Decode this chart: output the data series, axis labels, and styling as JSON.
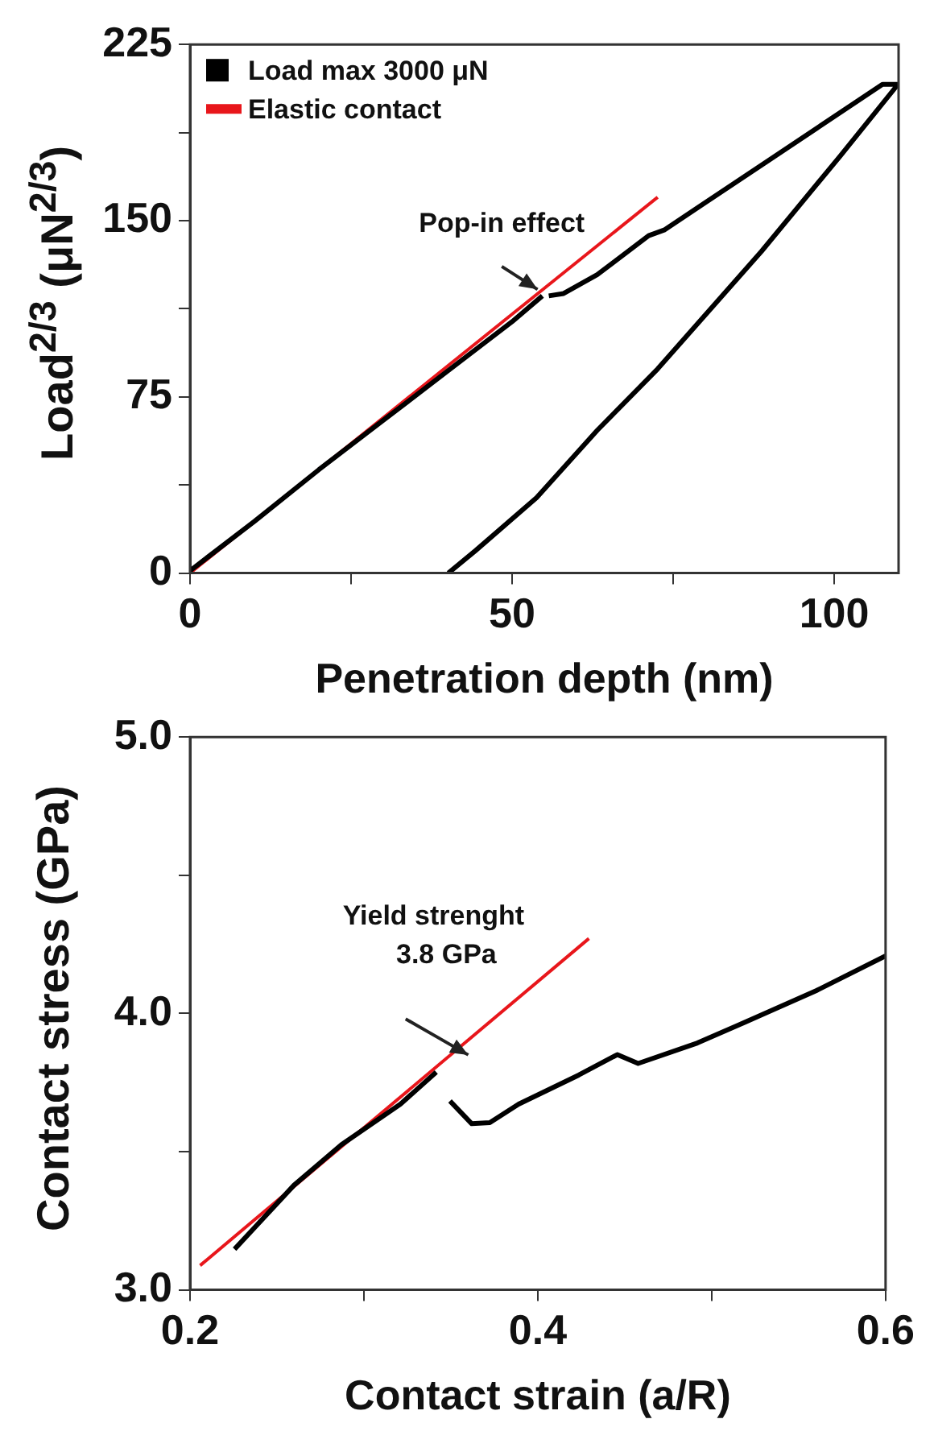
{
  "chart_data": [
    {
      "type": "line",
      "xlabel": "Penetration depth (nm)",
      "ylabel": "Load$^{2/3}$ (μN$^{2/3}$)",
      "xlim": [
        0,
        110
      ],
      "ylim": [
        0,
        225
      ],
      "xticks": [
        0,
        {
          "value": 25,
          "label": null
        },
        50,
        {
          "value": 75,
          "label": null
        },
        100
      ],
      "yticks": [
        0,
        {
          "value": 37.5,
          "label": null
        },
        75,
        {
          "value": 112.5,
          "label": null
        },
        150,
        {
          "value": 187.5,
          "label": null
        },
        225
      ],
      "grid": false,
      "legend": "top left",
      "marker": "none",
      "line_style": "solid",
      "annotations": [
        {
          "text": "Pop-in effect",
          "x": 54.7,
          "y": 118
        }
      ],
      "series": [
        {
          "name": "Load max 3000 μN",
          "color": "#000000",
          "x": [
            0,
            10,
            20,
            30,
            40,
            50,
            54.7,
            null,
            55.7,
            58,
            63.2,
            71.2,
            73.6,
            90,
            107.5,
            109.9,
            100.9,
            88.7,
            72.6,
            63.2,
            53.8,
            44.3,
            40.1
          ],
          "values": [
            1,
            22,
            44,
            65,
            86,
            107,
            118,
            null,
            118,
            119,
            127,
            143.6,
            146,
            176,
            208,
            208,
            177.4,
            136.9,
            86.9,
            60.7,
            32.1,
            9.5,
            0
          ]
        },
        {
          "name": "Elastic contact",
          "color": "#e8161b",
          "x": [
            0,
            72.6
          ],
          "values": [
            0,
            160
          ]
        }
      ]
    },
    {
      "type": "line",
      "xlabel": "Contact strain (a/R)",
      "ylabel": "Contact stress (GPa)",
      "xlim": [
        0.2,
        0.6
      ],
      "ylim": [
        3.0,
        5.0
      ],
      "xticks": [
        {
          "value": 0.2,
          "label": "0.2"
        },
        {
          "value": 0.3,
          "label": null
        },
        {
          "value": 0.4,
          "label": "0.4"
        },
        {
          "value": 0.5,
          "label": null
        },
        {
          "value": 0.6,
          "label": "0.6"
        }
      ],
      "yticks": [
        {
          "value": 3,
          "label": "3.0"
        },
        {
          "value": 3.5,
          "label": null
        },
        {
          "value": 4,
          "label": "4.0"
        },
        {
          "value": 4.5,
          "label": null
        },
        {
          "value": 5,
          "label": "5.0"
        }
      ],
      "grid": false,
      "legend": false,
      "marker": "none",
      "line_style": "solid",
      "annotations": [
        "Yield strenght\n3.8 GPa"
      ],
      "series": [
        {
          "color": "#000000",
          "x": [
            0.2256,
            0.2597,
            0.287,
            0.321,
            0.3416,
            null,
            0.3495,
            0.362,
            0.3724,
            0.389,
            0.4235,
            0.4457,
            0.4577,
            0.4918,
            0.526,
            0.56,
            0.6
          ],
          "values": [
            3.147,
            3.378,
            3.525,
            3.672,
            3.788,
            null,
            3.683,
            3.601,
            3.605,
            3.672,
            3.777,
            3.851,
            3.819,
            3.893,
            3.987,
            4.082,
            4.208
          ]
        },
        {
          "color": "#e8161b",
          "x": [
            0.2058,
            0.4294
          ],
          "values": [
            3.088,
            4.271
          ]
        }
      ]
    }
  ]
}
